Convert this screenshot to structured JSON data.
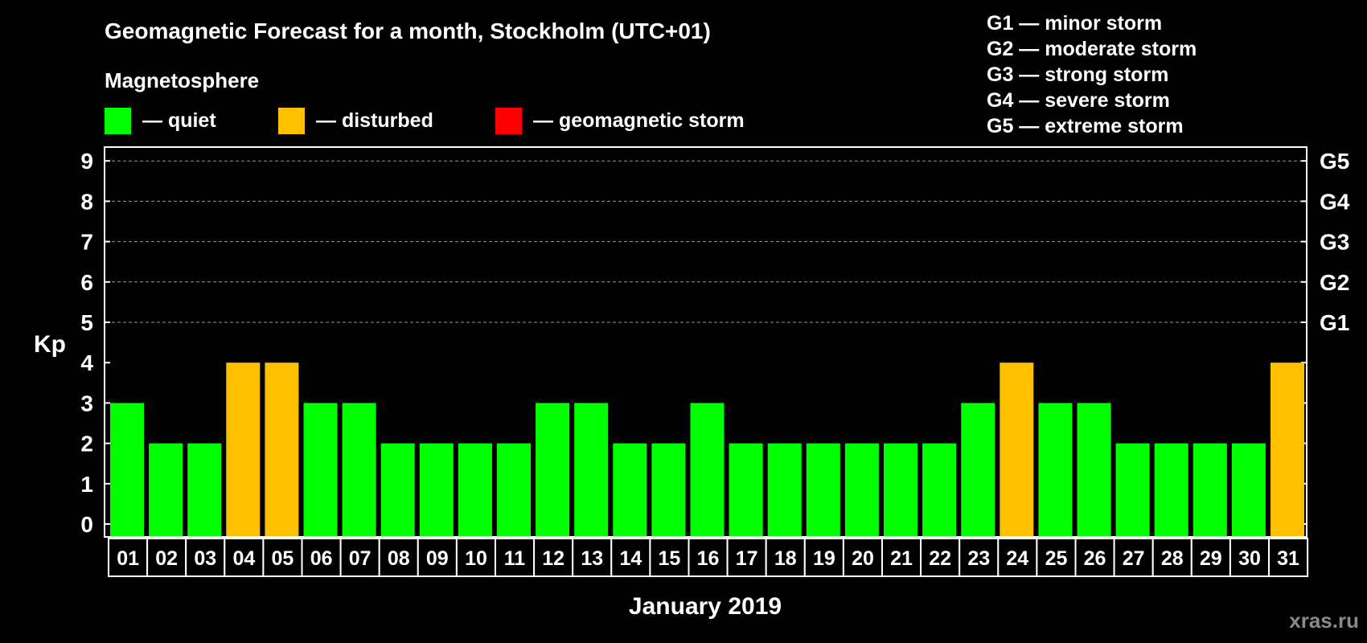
{
  "chart_data": {
    "type": "bar",
    "title": "Geomagnetic Forecast for a month, Stockholm (UTC+01)",
    "subtitle": "Magnetosphere",
    "xlabel": "January 2019",
    "ylabel": "Kp",
    "ylim": [
      0,
      9
    ],
    "yticks": [
      "0",
      "1",
      "2",
      "3",
      "4",
      "5",
      "6",
      "7",
      "8",
      "9"
    ],
    "grid": "dashed horizontal lines at Kp 5 through 9",
    "categories": [
      "01",
      "02",
      "03",
      "04",
      "05",
      "06",
      "07",
      "08",
      "09",
      "10",
      "11",
      "12",
      "13",
      "14",
      "15",
      "16",
      "17",
      "18",
      "19",
      "20",
      "21",
      "22",
      "23",
      "24",
      "25",
      "26",
      "27",
      "28",
      "29",
      "30",
      "31"
    ],
    "values": [
      3,
      2,
      2,
      4,
      4,
      3,
      3,
      2,
      2,
      2,
      2,
      3,
      3,
      2,
      2,
      3,
      2,
      2,
      2,
      2,
      2,
      2,
      3,
      4,
      3,
      3,
      2,
      2,
      2,
      2,
      4
    ],
    "legend": [
      {
        "label": "— quiet",
        "color": "#00ff00"
      },
      {
        "label": "— disturbed",
        "color": "#ffc000"
      },
      {
        "label": "— geomagnetic storm",
        "color": "#ff0000"
      }
    ],
    "storm_levels": [
      {
        "label": "G5",
        "kp": 9
      },
      {
        "label": "G4",
        "kp": 8
      },
      {
        "label": "G3",
        "kp": 7
      },
      {
        "label": "G2",
        "kp": 6
      },
      {
        "label": "G1",
        "kp": 5
      }
    ],
    "storm_legend": [
      "G1 — minor storm",
      "G2 — moderate storm",
      "G3 — strong storm",
      "G4 — severe storm",
      "G5 — extreme storm"
    ],
    "colors": {
      "quiet": "#00ff00",
      "disturbed": "#ffc000",
      "storm": "#ff0000",
      "background": "#000000",
      "axis": "#ffffff",
      "grid": "#999999"
    }
  },
  "watermark": "xras.ru"
}
